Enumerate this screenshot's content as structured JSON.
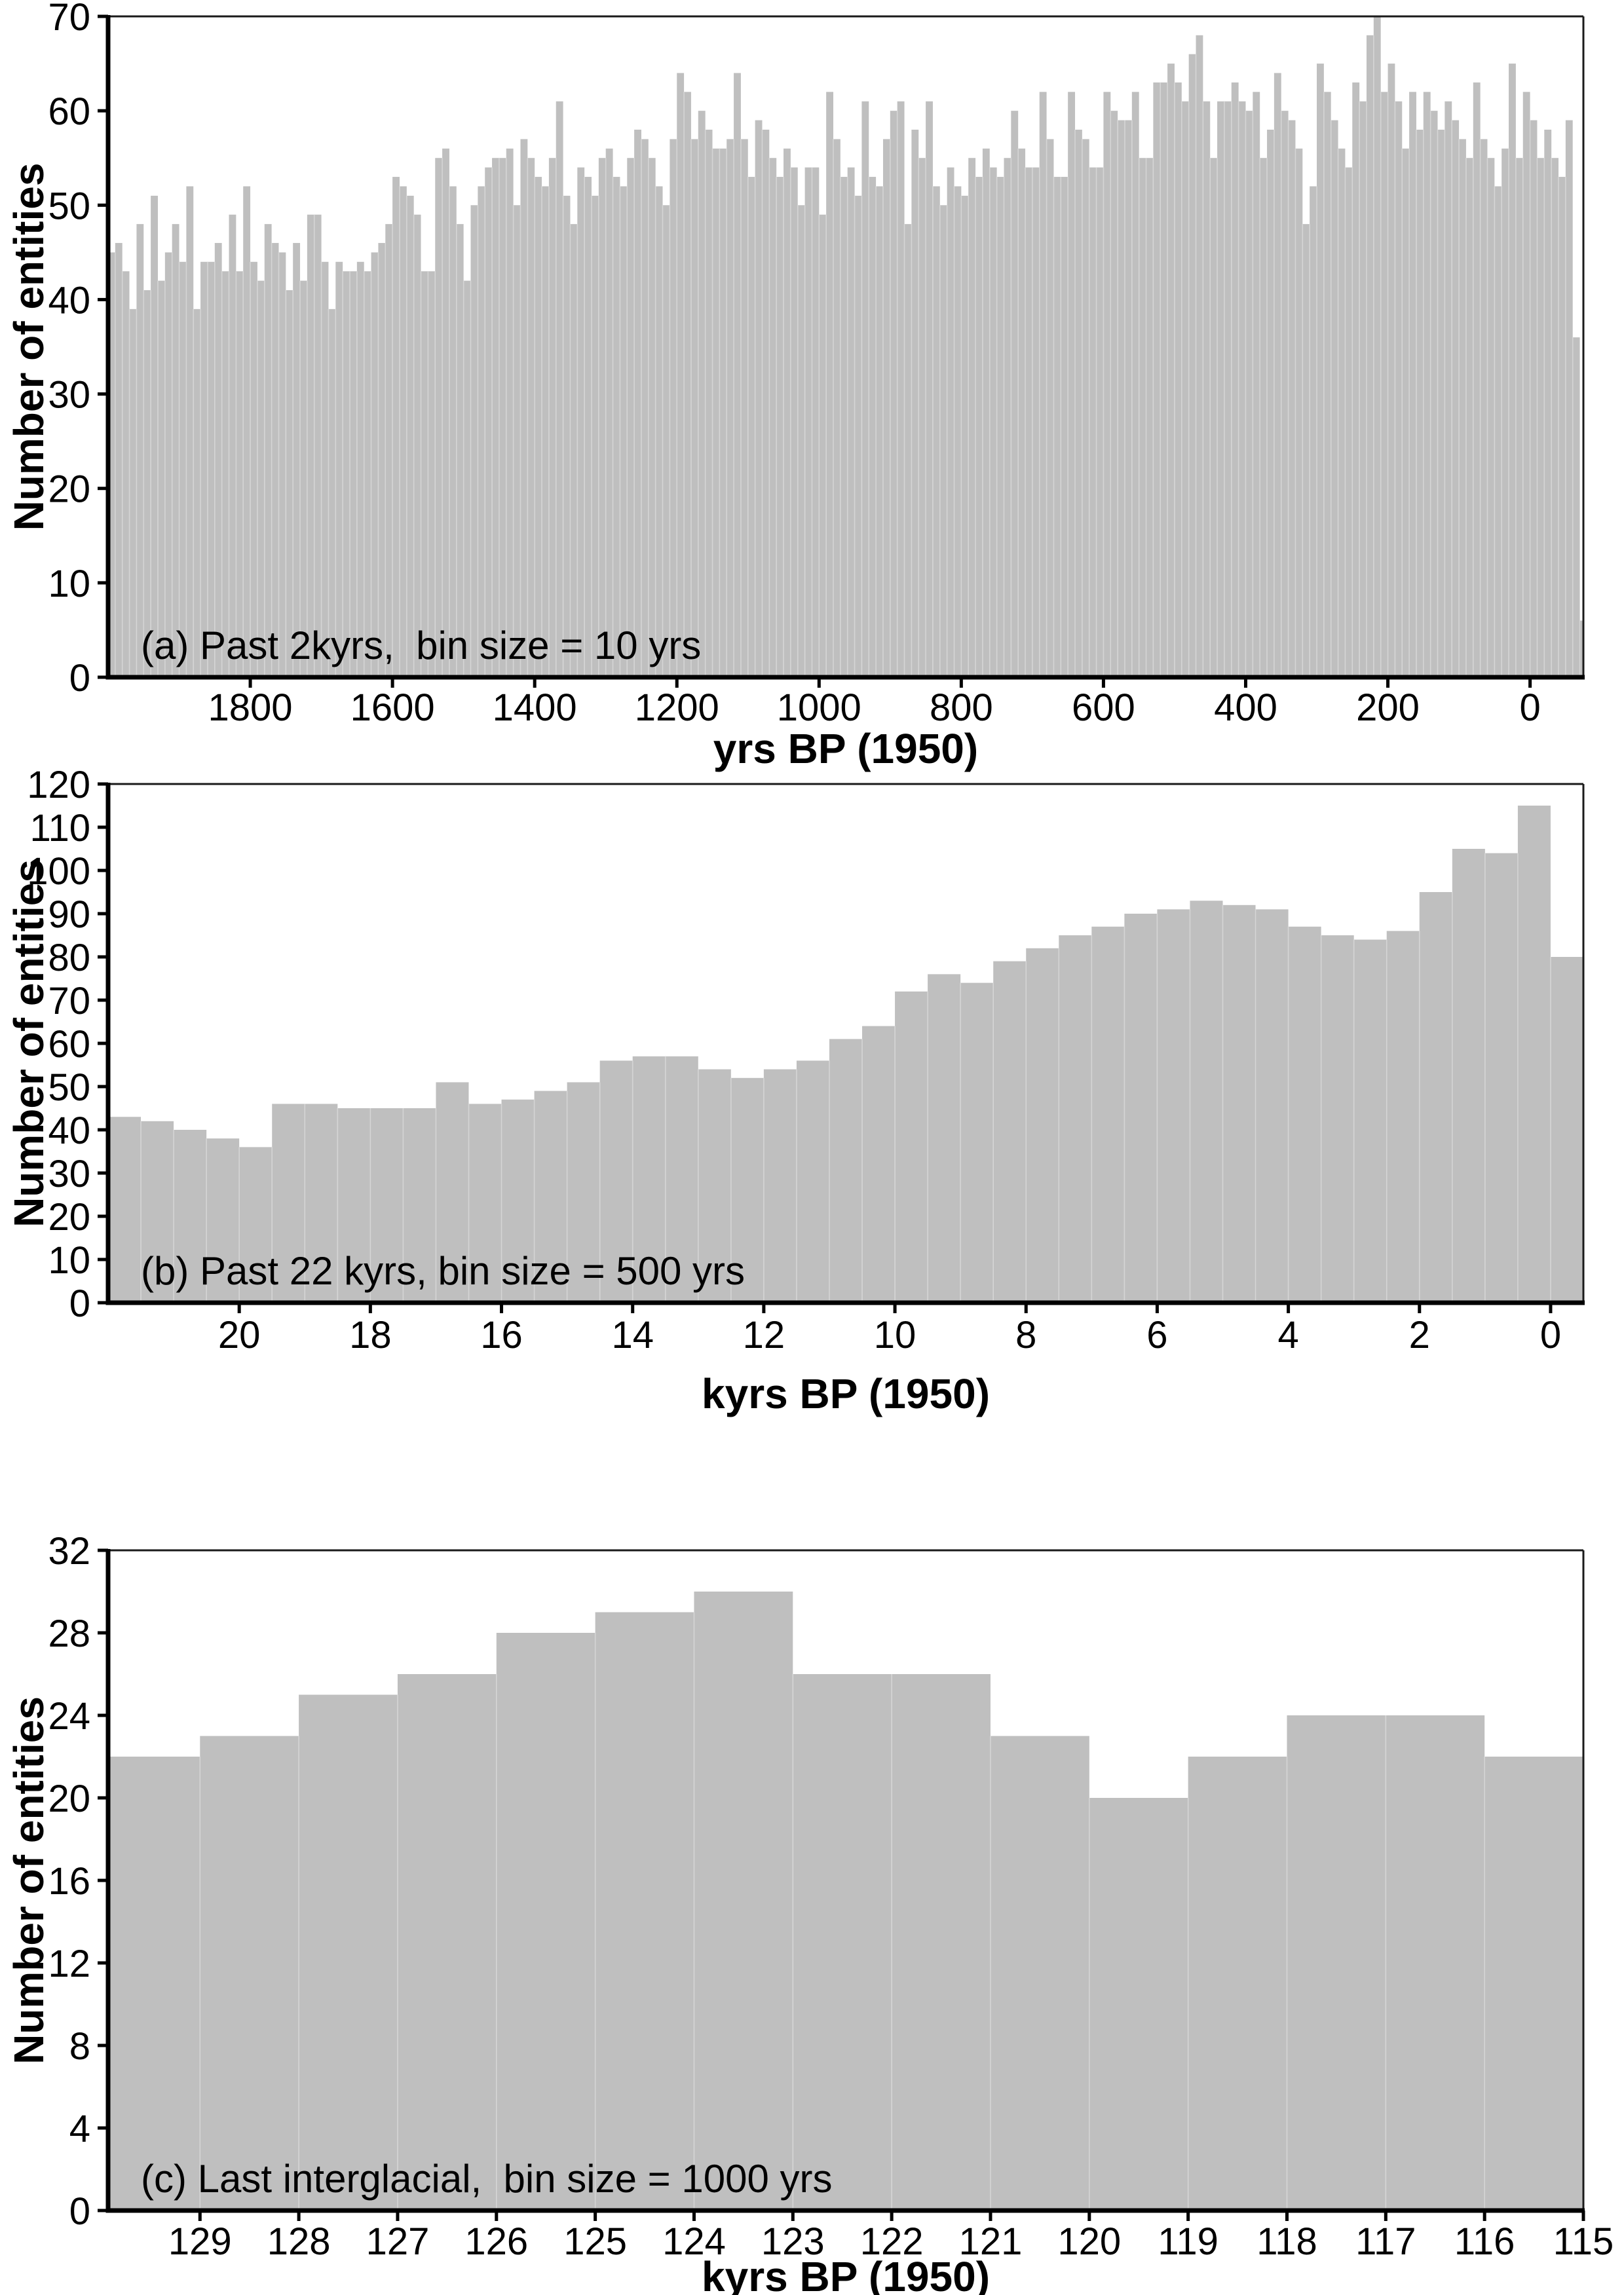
{
  "figure": {
    "background": "#ffffff",
    "bar_fill": "#bfbfbf",
    "bar_seam": "#d5d5d5",
    "axis_color": "#000000",
    "frame_color": "#1a1a1a",
    "text_color": "#000000"
  },
  "chart_data": [
    {
      "id": "a",
      "type": "bar",
      "title": "(a) Past 2kyrs,  bin size = 10 yrs",
      "xlabel": "yrs BP (1950)",
      "ylabel": "Number of entities",
      "xlim": [
        2000,
        -75
      ],
      "ylim": [
        0,
        70
      ],
      "xticks": [
        1800,
        1600,
        1400,
        1200,
        1000,
        800,
        600,
        400,
        200,
        0
      ],
      "yticks": [
        0,
        10,
        20,
        30,
        40,
        50,
        60,
        70
      ],
      "bins": {
        "start": 2000,
        "step": 10
      },
      "values": [
        45,
        46,
        43,
        39,
        48,
        41,
        51,
        42,
        45,
        48,
        44,
        52,
        39,
        44,
        44,
        46,
        43,
        49,
        43,
        52,
        44,
        42,
        48,
        46,
        45,
        41,
        46,
        42,
        49,
        49,
        44,
        39,
        44,
        43,
        43,
        44,
        43,
        45,
        46,
        48,
        53,
        52,
        51,
        49,
        43,
        43,
        55,
        56,
        52,
        48,
        42,
        50,
        52,
        54,
        55,
        55,
        56,
        50,
        57,
        55,
        53,
        52,
        55,
        61,
        51,
        48,
        54,
        53,
        51,
        55,
        56,
        53,
        52,
        55,
        58,
        57,
        55,
        52,
        50,
        57,
        64,
        62,
        57,
        60,
        58,
        56,
        56,
        57,
        64,
        57,
        53,
        59,
        58,
        55,
        53,
        56,
        54,
        50,
        54,
        54,
        49,
        62,
        57,
        53,
        54,
        51,
        61,
        53,
        52,
        57,
        60,
        61,
        48,
        58,
        55,
        61,
        52,
        50,
        54,
        52,
        51,
        55,
        53,
        56,
        54,
        53,
        55,
        60,
        56,
        54,
        54,
        62,
        57,
        53,
        53,
        62,
        58,
        57,
        54,
        54,
        62,
        60,
        59,
        59,
        62,
        55,
        55,
        63,
        63,
        65,
        63,
        61,
        66,
        68,
        61,
        55,
        61,
        61,
        63,
        61,
        60,
        62,
        55,
        58,
        64,
        60,
        59,
        56,
        48,
        52,
        65,
        62,
        59,
        56,
        54,
        63,
        61,
        68,
        70,
        62,
        65,
        61,
        56,
        62,
        58,
        62,
        60,
        58,
        61,
        59,
        57,
        55,
        63,
        57,
        55,
        52,
        56,
        65,
        55,
        62,
        59,
        55,
        58,
        55,
        53,
        59,
        36,
        6
      ]
    },
    {
      "id": "b",
      "type": "bar",
      "title": "(b) Past 22 kyrs, bin size = 500 yrs",
      "xlabel": "kyrs BP (1950)",
      "ylabel": "Number of entities",
      "xlim": [
        22,
        -0.5
      ],
      "ylim": [
        0,
        120
      ],
      "xticks": [
        20,
        18,
        16,
        14,
        12,
        10,
        8,
        6,
        4,
        2,
        0
      ],
      "yticks": [
        0,
        10,
        20,
        30,
        40,
        50,
        60,
        70,
        80,
        90,
        100,
        110,
        120
      ],
      "bins": {
        "start": 22,
        "step": 0.5
      },
      "values": [
        43,
        42,
        40,
        38,
        36,
        46,
        46,
        45,
        45,
        45,
        51,
        46,
        47,
        49,
        51,
        56,
        57,
        57,
        54,
        52,
        54,
        56,
        61,
        64,
        72,
        76,
        74,
        79,
        82,
        85,
        87,
        90,
        91,
        93,
        92,
        91,
        87,
        85,
        84,
        86,
        95,
        105,
        104,
        115,
        80
      ]
    },
    {
      "id": "c",
      "type": "bar",
      "title": "(c) Last interglacial,  bin size = 1000 yrs",
      "xlabel": "kyrs BP (1950)",
      "ylabel": "Number of entities",
      "xlim": [
        129.93,
        115
      ],
      "ylim": [
        0,
        32
      ],
      "xticks": [
        129,
        128,
        127,
        126,
        125,
        124,
        123,
        122,
        121,
        120,
        119,
        118,
        117,
        116,
        115
      ],
      "yticks": [
        0,
        4,
        8,
        12,
        16,
        20,
        24,
        28,
        32
      ],
      "bins": {
        "start": 130,
        "step": 1
      },
      "values": [
        22,
        23,
        25,
        26,
        28,
        29,
        30,
        26,
        26,
        23,
        20,
        22,
        24,
        24,
        22
      ]
    }
  ]
}
